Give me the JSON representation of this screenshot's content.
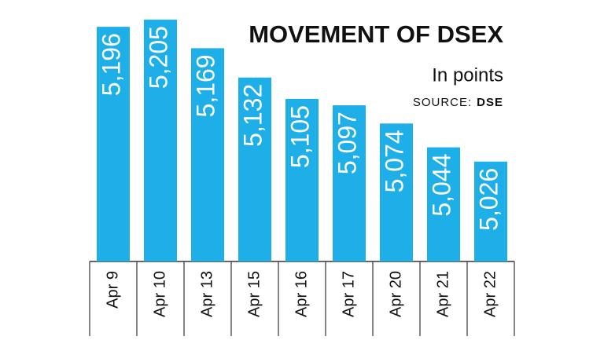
{
  "chart_data": {
    "type": "bar",
    "title": "MOVEMENT OF DSEX",
    "subtitle": "In points",
    "source_label": "SOURCE:",
    "source": "DSE",
    "categories": [
      "Apr 9",
      "Apr 10",
      "Apr 13",
      "Apr 15",
      "Apr 16",
      "Apr 17",
      "Apr 20",
      "Apr 21",
      "Apr 22"
    ],
    "values": [
      5196,
      5205,
      5169,
      5132,
      5105,
      5097,
      5074,
      5044,
      5026
    ],
    "value_labels": [
      "5,196",
      "5,205",
      "5,169",
      "5,132",
      "5,105",
      "5,097",
      "5,074",
      "5,044",
      "5,026"
    ],
    "color": "#1eaee8",
    "ylim": [
      4900,
      5210
    ]
  }
}
